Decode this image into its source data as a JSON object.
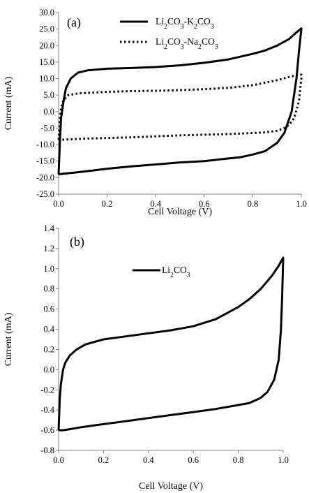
{
  "chart_data": [
    {
      "type": "line",
      "panel_label": "(a)",
      "xlabel": "Cell Voltage (V)",
      "ylabel": "Current (mA)",
      "xlim": [
        0.0,
        1.0
      ],
      "ylim": [
        -25.0,
        30.0
      ],
      "x_ticks": [
        "0.0",
        "0.2",
        "0.4",
        "0.6",
        "0.8",
        "1.0"
      ],
      "y_ticks": [
        "-25.0",
        "-20.0",
        "-15.0",
        "-10.0",
        "-5.0",
        "0.0",
        "5.0",
        "10.0",
        "15.0",
        "20.0",
        "25.0",
        "30.0"
      ],
      "grid": false,
      "legend_position": "top-right",
      "series": [
        {
          "name": "Li2CO3-K2CO3",
          "legend_parts": [
            [
              "Li",
              false
            ],
            [
              "2",
              true
            ],
            [
              "CO",
              false
            ],
            [
              "3",
              true
            ],
            [
              "-K",
              false
            ],
            [
              "2",
              true
            ],
            [
              "CO",
              false
            ],
            [
              "3",
              true
            ]
          ],
          "style": "solid",
          "x": [
            0.0,
            0.005,
            0.01,
            0.02,
            0.03,
            0.05,
            0.08,
            0.12,
            0.2,
            0.3,
            0.4,
            0.5,
            0.6,
            0.7,
            0.8,
            0.85,
            0.9,
            0.95,
            0.98,
            1.0,
            1.0,
            0.99,
            0.98,
            0.96,
            0.93,
            0.9,
            0.85,
            0.8,
            0.75,
            0.7,
            0.6,
            0.5,
            0.4,
            0.3,
            0.2,
            0.1,
            0.05,
            0.02,
            0.0,
            0.0
          ],
          "y": [
            -19.0,
            -10.0,
            -2.0,
            3.0,
            7.0,
            10.0,
            11.8,
            12.5,
            13.0,
            13.2,
            13.5,
            14.0,
            14.8,
            15.8,
            17.5,
            18.5,
            20.0,
            22.0,
            24.0,
            25.2,
            25.0,
            18.0,
            10.0,
            0.0,
            -6.5,
            -9.5,
            -12.0,
            -13.0,
            -13.8,
            -14.2,
            -15.0,
            -15.4,
            -16.0,
            -16.6,
            -17.3,
            -18.2,
            -18.6,
            -18.8,
            -19.0,
            -19.0
          ]
        },
        {
          "name": "Li2CO3-Na2CO3",
          "legend_parts": [
            [
              "Li",
              false
            ],
            [
              "2",
              true
            ],
            [
              "CO",
              false
            ],
            [
              "3",
              true
            ],
            [
              "-Na",
              false
            ],
            [
              "2",
              true
            ],
            [
              "CO",
              false
            ],
            [
              "3",
              true
            ]
          ],
          "style": "dotted",
          "x": [
            0.0,
            0.005,
            0.01,
            0.02,
            0.04,
            0.08,
            0.2,
            0.3,
            0.4,
            0.5,
            0.6,
            0.7,
            0.8,
            0.9,
            0.95,
            0.98,
            1.0,
            1.0,
            0.99,
            0.97,
            0.95,
            0.93,
            0.9,
            0.85,
            0.8,
            0.7,
            0.6,
            0.5,
            0.4,
            0.3,
            0.2,
            0.1,
            0.05,
            0.02,
            0.0,
            0.0
          ],
          "y": [
            -8.5,
            -3.0,
            1.0,
            3.5,
            5.0,
            5.5,
            6.0,
            6.2,
            6.3,
            6.5,
            6.8,
            7.2,
            8.0,
            9.5,
            10.5,
            11.0,
            11.2,
            10.0,
            3.0,
            -2.0,
            -4.0,
            -5.0,
            -5.8,
            -6.3,
            -6.5,
            -6.8,
            -7.0,
            -7.2,
            -7.5,
            -7.8,
            -8.0,
            -8.2,
            -8.4,
            -8.5,
            -8.5,
            -8.5
          ]
        }
      ]
    },
    {
      "type": "line",
      "panel_label": "(b)",
      "xlabel": "Cell Voltage (V)",
      "ylabel": "Current (mA)",
      "xlim": [
        0.0,
        1.0
      ],
      "ylim": [
        -0.8,
        1.4
      ],
      "x_ticks": [
        "0.0",
        "0.2",
        "0.4",
        "0.6",
        "0.8",
        "1.0"
      ],
      "y_ticks": [
        "-0.8",
        "-0.6",
        "-0.4",
        "-0.2",
        "0.0",
        "0.2",
        "0.4",
        "0.6",
        "0.8",
        "1.0",
        "1.2",
        "1.4"
      ],
      "grid": false,
      "legend_position": "top-center",
      "series": [
        {
          "name": "Li2CO3",
          "legend_parts": [
            [
              "Li",
              false
            ],
            [
              "2",
              true
            ],
            [
              "CO",
              false
            ],
            [
              "3",
              true
            ]
          ],
          "style": "solid",
          "x": [
            0.0,
            0.005,
            0.01,
            0.02,
            0.03,
            0.05,
            0.08,
            0.12,
            0.2,
            0.3,
            0.4,
            0.5,
            0.6,
            0.7,
            0.8,
            0.85,
            0.9,
            0.95,
            0.98,
            1.0,
            1.0,
            0.995,
            0.99,
            0.98,
            0.96,
            0.93,
            0.9,
            0.85,
            0.8,
            0.7,
            0.6,
            0.5,
            0.4,
            0.3,
            0.2,
            0.1,
            0.05,
            0.02,
            0.0,
            0.0
          ],
          "y": [
            -0.6,
            -0.3,
            -0.15,
            0.0,
            0.07,
            0.14,
            0.2,
            0.25,
            0.3,
            0.33,
            0.36,
            0.39,
            0.43,
            0.5,
            0.62,
            0.7,
            0.8,
            0.93,
            1.03,
            1.11,
            1.1,
            0.7,
            0.4,
            0.1,
            -0.1,
            -0.22,
            -0.28,
            -0.33,
            -0.35,
            -0.39,
            -0.42,
            -0.45,
            -0.48,
            -0.51,
            -0.54,
            -0.57,
            -0.59,
            -0.6,
            -0.6,
            -0.6
          ]
        }
      ]
    }
  ]
}
